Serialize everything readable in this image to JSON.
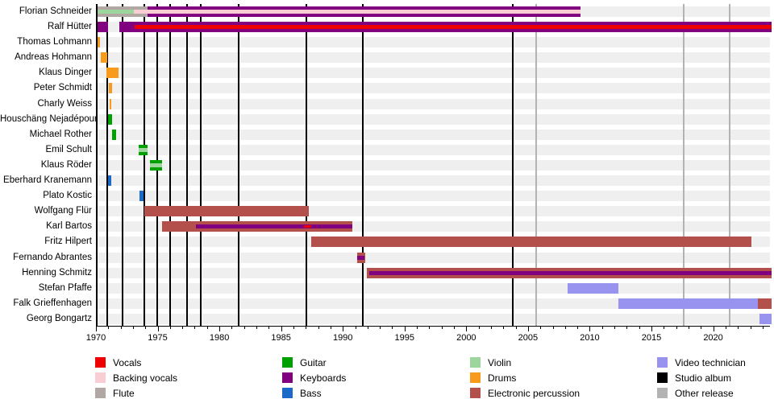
{
  "chart_data": {
    "type": "timeline",
    "x_axis": {
      "start": 1970,
      "end": 2024.6,
      "minor_tick_step": 1,
      "major_tick_years": [
        1970,
        1975,
        1980,
        1985,
        1990,
        1995,
        2000,
        2005,
        2010,
        2015,
        2020
      ]
    },
    "event_lines": {
      "studio_album": [
        1970.8,
        1972.0,
        1973.8,
        1974.85,
        1975.9,
        1977.25,
        1978.35,
        1981.45,
        1986.9,
        1991.5,
        2003.65
      ],
      "other_release": [
        2005.5,
        2017.5,
        2021.2
      ]
    },
    "members": [
      {
        "name": "Florian Schneider",
        "segments": [
          {
            "role": "flute",
            "start": 1970.0,
            "end": 1974.05,
            "inner": [
              {
                "role": "violin",
                "start": 1970.0,
                "end": 1972.95
              },
              {
                "role": "backing_vocals",
                "start": 1972.95,
                "end": 1974.05
              }
            ]
          },
          {
            "role": "keyboards",
            "start": 1974.05,
            "end": 2009.15,
            "inner": [
              {
                "role": "backing_vocals",
                "start": 1974.05,
                "end": 2009.15
              }
            ]
          }
        ]
      },
      {
        "name": "Ralf Hütter",
        "segments": [
          {
            "role": "keyboards",
            "start": 1970.0,
            "end": 1970.85
          },
          {
            "role": "keyboards",
            "start": 1971.75,
            "end": 2024.6,
            "inner": [
              {
                "role": "vocals",
                "start": 1973.0,
                "end": 2024.6
              }
            ]
          }
        ]
      },
      {
        "name": "Thomas Lohmann",
        "segments": [
          {
            "role": "drums",
            "start": 1970.0,
            "end": 1970.2
          }
        ]
      },
      {
        "name": "Andreas Hohmann",
        "segments": [
          {
            "role": "drums",
            "start": 1970.25,
            "end": 1970.8
          }
        ]
      },
      {
        "name": "Klaus Dinger",
        "segments": [
          {
            "role": "drums",
            "start": 1970.75,
            "end": 1971.7
          }
        ]
      },
      {
        "name": "Peter Schmidt",
        "segments": [
          {
            "role": "drums",
            "start": 1970.9,
            "end": 1971.2
          }
        ]
      },
      {
        "name": "Charly Weiss",
        "segments": [
          {
            "role": "drums",
            "start": 1970.95,
            "end": 1971.1
          }
        ]
      },
      {
        "name": "Houschäng Nejadépour",
        "segments": [
          {
            "role": "guitar",
            "start": 1970.85,
            "end": 1971.2
          }
        ]
      },
      {
        "name": "Michael Rother",
        "segments": [
          {
            "role": "guitar",
            "start": 1971.15,
            "end": 1971.5
          }
        ]
      },
      {
        "name": "Emil Schult",
        "segments": [
          {
            "role": "guitar",
            "start": 1973.35,
            "end": 1974.05,
            "inner": [
              {
                "role": "violin",
                "start": 1973.35,
                "end": 1974.05
              }
            ]
          }
        ]
      },
      {
        "name": "Klaus Röder",
        "segments": [
          {
            "role": "guitar",
            "start": 1974.25,
            "end": 1975.2,
            "inner": [
              {
                "role": "violin",
                "start": 1974.25,
                "end": 1975.2
              }
            ]
          }
        ]
      },
      {
        "name": "Eberhard Kranemann",
        "segments": [
          {
            "role": "bass",
            "start": 1970.85,
            "end": 1971.1
          }
        ]
      },
      {
        "name": "Plato Kostic",
        "segments": [
          {
            "role": "bass",
            "start": 1973.4,
            "end": 1973.75
          }
        ]
      },
      {
        "name": "Wolfgang Flür",
        "segments": [
          {
            "role": "electronic_percussion",
            "start": 1973.8,
            "end": 1987.1
          }
        ]
      },
      {
        "name": "Karl Bartos",
        "segments": [
          {
            "role": "electronic_percussion",
            "start": 1975.25,
            "end": 1990.65,
            "inner": [
              {
                "role": "keyboards",
                "start": 1978.0,
                "end": 1990.65
              },
              {
                "role": "vocals",
                "start": 1986.7,
                "end": 1987.3,
                "thin": true
              }
            ]
          }
        ]
      },
      {
        "name": "Fritz Hilpert",
        "segments": [
          {
            "role": "electronic_percussion",
            "start": 1987.3,
            "end": 2023.0
          }
        ]
      },
      {
        "name": "Fernando Abrantes",
        "segments": [
          {
            "role": "electronic_percussion",
            "start": 1991.0,
            "end": 1991.7,
            "inner": [
              {
                "role": "keyboards",
                "start": 1991.05,
                "end": 1991.65
              }
            ]
          }
        ]
      },
      {
        "name": "Henning Schmitz",
        "segments": [
          {
            "role": "electronic_percussion",
            "start": 1991.8,
            "end": 2024.6,
            "inner": [
              {
                "role": "keyboards",
                "start": 1992.0,
                "end": 2024.6
              }
            ]
          }
        ]
      },
      {
        "name": "Stefan Pfaffe",
        "segments": [
          {
            "role": "video_technician",
            "start": 2008.1,
            "end": 2012.2
          }
        ]
      },
      {
        "name": "Falk Grieffenhagen",
        "segments": [
          {
            "role": "video_technician",
            "start": 2012.2,
            "end": 2023.5
          },
          {
            "role": "electronic_percussion",
            "start": 2023.5,
            "end": 2024.6
          }
        ]
      },
      {
        "name": "Georg Bongartz",
        "segments": [
          {
            "role": "video_technician",
            "start": 2023.6,
            "end": 2024.6
          }
        ]
      }
    ],
    "legend": {
      "columns": 4,
      "rows_per_column": 3,
      "items": [
        {
          "label": "Vocals",
          "color_key": "vocals"
        },
        {
          "label": "Backing vocals",
          "color_key": "backing_vocals"
        },
        {
          "label": "Flute",
          "color_key": "flute"
        },
        {
          "label": "Guitar",
          "color_key": "guitar"
        },
        {
          "label": "Keyboards",
          "color_key": "keyboards"
        },
        {
          "label": "Bass",
          "color_key": "bass"
        },
        {
          "label": "Violin",
          "color_key": "violin"
        },
        {
          "label": "Drums",
          "color_key": "drums"
        },
        {
          "label": "Electronic percussion",
          "color_key": "electronic_percussion"
        },
        {
          "label": "Video technician",
          "color_key": "video_technician"
        },
        {
          "label": "Studio album",
          "color_key": "studio_album"
        },
        {
          "label": "Other release",
          "color_key": "other_release"
        }
      ]
    }
  },
  "colors": {
    "vocals": "#ee0000",
    "backing_vocals": "#f8cdd3",
    "flute": "#b1a8a4",
    "guitar": "#00a000",
    "keyboards": "#800080",
    "bass": "#1b6ac9",
    "violin": "#9cd69c",
    "drums": "#f89b1c",
    "electronic_percussion": "#b3504b",
    "video_technician": "#9793ee",
    "studio_album": "#000000",
    "other_release": "#b3b3b3",
    "row_track": "#efefef"
  }
}
